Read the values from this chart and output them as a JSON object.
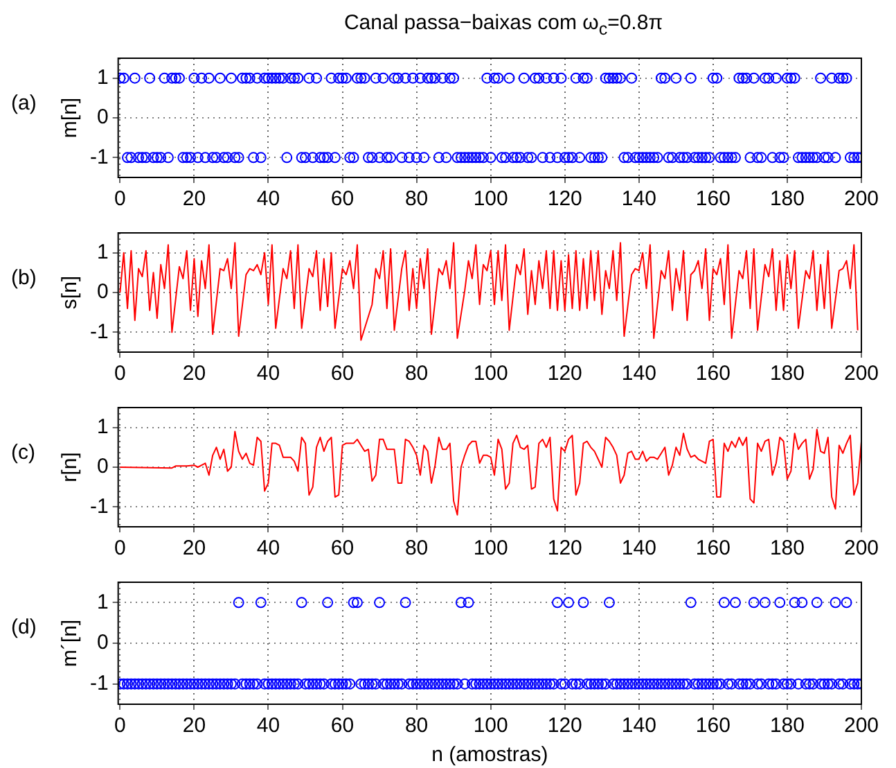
{
  "chart_data": [
    {
      "type": "scatter",
      "title": "Canal passa−baixas com ω$_{c}$=0.8π",
      "ylabel": "m[n]",
      "annotations": [
        "(a)"
      ],
      "color": "#0000ff",
      "marker": "circle",
      "grid": true,
      "xlim": [
        -0.5,
        200
      ],
      "ylim": [
        -1.5,
        1.5
      ],
      "xticks": [
        0,
        20,
        40,
        60,
        80,
        100,
        120,
        140,
        160,
        180,
        200
      ],
      "yticks": [
        -1,
        0,
        1
      ],
      "x": [
        0,
        1,
        2,
        3,
        4,
        5,
        6,
        7,
        8,
        9,
        10,
        11,
        12,
        13,
        14,
        15,
        16,
        17,
        18,
        19,
        20,
        21,
        22,
        23,
        24,
        25,
        26,
        27,
        28,
        29,
        30,
        31,
        32,
        33,
        34,
        35,
        36,
        37,
        38,
        39,
        40,
        41,
        42,
        43,
        44,
        45,
        46,
        47,
        48,
        49,
        50,
        51,
        52,
        53,
        54,
        55,
        56,
        57,
        58,
        59,
        60,
        61,
        62,
        63,
        64,
        65,
        66,
        67,
        68,
        69,
        70,
        71,
        72,
        73,
        74,
        75,
        76,
        77,
        78,
        79,
        80,
        81,
        82,
        83,
        84,
        85,
        86,
        87,
        88,
        89,
        90,
        91,
        92,
        93,
        94,
        95,
        96,
        97,
        98,
        99,
        100,
        101,
        102,
        103,
        104,
        105,
        106,
        107,
        108,
        109,
        110,
        111,
        112,
        113,
        114,
        115,
        116,
        117,
        118,
        119,
        120,
        121,
        122,
        123,
        124,
        125,
        126,
        127,
        128,
        129,
        130,
        131,
        132,
        133,
        134,
        135,
        136,
        137,
        138,
        139,
        140,
        141,
        142,
        143,
        144,
        145,
        146,
        147,
        148,
        149,
        150,
        151,
        152,
        153,
        154,
        155,
        156,
        157,
        158,
        159,
        160,
        161,
        162,
        163,
        164,
        165,
        166,
        167,
        168,
        169,
        170,
        171,
        172,
        173,
        174,
        175,
        176,
        177,
        178,
        179,
        180,
        181,
        182,
        183,
        184,
        185,
        186,
        187,
        188,
        189,
        190,
        191,
        192,
        193,
        194,
        195,
        196,
        197,
        198,
        199,
        200
      ],
      "values": [
        1,
        1,
        -1,
        -1,
        1,
        -1,
        -1,
        -1,
        1,
        -1,
        -1,
        -1,
        1,
        -1,
        1,
        1,
        1,
        -1,
        -1,
        -1,
        1,
        -1,
        1,
        -1,
        1,
        -1,
        -1,
        1,
        -1,
        -1,
        1,
        -1,
        -1,
        1,
        1,
        1,
        -1,
        1,
        -1,
        1,
        1,
        1,
        1,
        1,
        1,
        -1,
        1,
        1,
        1,
        -1,
        -1,
        1,
        -1,
        1,
        -1,
        -1,
        -1,
        1,
        -1,
        1,
        1,
        1,
        -1,
        -1,
        1,
        1,
        1,
        -1,
        -1,
        1,
        -1,
        1,
        -1,
        -1,
        1,
        1,
        -1,
        1,
        -1,
        1,
        -1,
        1,
        -1,
        1,
        1,
        1,
        -1,
        1,
        -1,
        1,
        1,
        -1,
        -1,
        -1,
        -1,
        -1,
        -1,
        -1,
        -1,
        1,
        -1,
        1,
        1,
        -1,
        -1,
        1,
        -1,
        -1,
        -1,
        1,
        -1,
        -1,
        1,
        1,
        -1,
        1,
        -1,
        1,
        -1,
        1,
        -1,
        -1,
        -1,
        1,
        -1,
        1,
        1,
        -1,
        -1,
        -1,
        -1,
        1,
        1,
        1,
        1,
        1,
        -1,
        -1,
        1,
        -1,
        -1,
        -1,
        -1,
        -1,
        -1,
        -1,
        1,
        1,
        -1,
        -1,
        1,
        -1,
        -1,
        -1,
        1,
        -1,
        -1,
        -1,
        -1,
        -1,
        1,
        1,
        -1,
        -1,
        -1,
        -1,
        -1,
        1,
        1,
        1,
        -1,
        1,
        -1,
        -1,
        1,
        1,
        -1,
        1,
        -1,
        -1,
        1,
        1,
        1,
        -1,
        -1,
        -1,
        -1,
        -1,
        -1,
        1,
        -1,
        -1,
        1,
        -1,
        1,
        1,
        1,
        -1,
        -1,
        -1,
        -1
      ]
    },
    {
      "type": "line",
      "ylabel": "s[n]",
      "annotations": [
        "(b)"
      ],
      "color": "#ff0000",
      "grid": true,
      "xlim": [
        -0.5,
        200
      ],
      "ylim": [
        -1.5,
        1.5
      ],
      "xticks": [
        0,
        20,
        40,
        60,
        80,
        100,
        120,
        140,
        160,
        180,
        200
      ],
      "yticks": [
        -1,
        0,
        1
      ],
      "x": [
        0,
        1,
        2,
        3,
        4,
        5,
        6,
        7,
        8,
        9,
        10,
        11,
        12,
        13,
        14,
        16,
        17,
        18,
        19,
        20,
        21,
        22,
        23,
        24,
        25,
        27,
        28,
        29,
        30,
        31,
        32,
        34,
        35,
        36,
        37,
        38,
        39,
        40,
        41,
        42,
        44,
        45,
        46,
        47,
        48,
        49,
        51,
        52,
        53,
        54,
        55,
        56,
        57,
        58,
        60,
        61,
        62,
        63,
        64,
        65,
        68,
        69,
        70,
        71,
        72,
        73,
        74,
        76,
        77,
        78,
        79,
        80,
        81,
        82,
        83,
        84,
        86,
        87,
        88,
        89,
        90,
        91,
        93,
        94,
        95,
        96,
        97,
        98,
        99,
        100,
        101,
        102,
        103,
        104,
        105,
        107,
        108,
        109,
        110,
        111,
        112,
        113,
        114,
        115,
        116,
        117,
        118,
        119,
        120,
        121,
        122,
        123,
        124,
        125,
        126,
        127,
        128,
        129,
        130,
        131,
        132,
        133,
        134,
        135,
        136,
        138,
        139,
        140,
        141,
        142,
        143,
        144,
        146,
        147,
        148,
        149,
        150,
        151,
        152,
        153,
        154,
        155,
        156,
        157,
        158,
        159,
        160,
        161,
        162,
        163,
        164,
        165,
        167,
        168,
        169,
        170,
        171,
        172,
        174,
        175,
        176,
        177,
        178,
        179,
        180,
        181,
        182,
        183,
        185,
        186,
        187,
        188,
        189,
        190,
        191,
        192,
        194,
        195,
        196,
        197,
        198,
        199
      ],
      "values": [
        0,
        1,
        -0.4,
        1.05,
        -0.7,
        0.6,
        0.4,
        1.05,
        -0.45,
        0.5,
        -0.65,
        0.7,
        0.1,
        1.2,
        -1,
        0.65,
        0.35,
        1.05,
        -0.45,
        0.85,
        -0.6,
        0.8,
        0.1,
        1.2,
        -1.05,
        0.6,
        0.55,
        0.85,
        0.1,
        1.25,
        -1.1,
        0.45,
        0.6,
        0.55,
        0.7,
        0.45,
        1,
        -0.3,
        1.2,
        -0.9,
        0.6,
        0.35,
        1.05,
        -0.4,
        1.2,
        -0.9,
        0.6,
        0.4,
        1.05,
        -0.45,
        0.85,
        -0.35,
        1,
        -0.9,
        0.6,
        0.45,
        0.8,
        0.1,
        1.2,
        -1.2,
        -0.3,
        0.6,
        0.35,
        1.05,
        -0.4,
        1.1,
        -0.95,
        0.6,
        1.05,
        -0.45,
        0.6,
        -0.4,
        0.85,
        0.1,
        1.1,
        -1.05,
        0.6,
        0.45,
        0.8,
        0.1,
        1.25,
        -1.15,
        0.05,
        0.8,
        0.35,
        1.2,
        -0.3,
        0.7,
        0.55,
        1.05,
        -0.3,
        1.05,
        -0.2,
        1.2,
        -0.95,
        0.7,
        0.45,
        1.1,
        -0.55,
        0.55,
        -0.3,
        0.8,
        0.1,
        1.05,
        -0.4,
        1.05,
        -0.45,
        0.8,
        -0.45,
        0.95,
        -0.4,
        1.05,
        -0.45,
        0.85,
        -0.4,
        1.05,
        -0.2,
        1.05,
        -0.55,
        0.55,
        0.1,
        1.05,
        -0.2,
        1.25,
        -1.1,
        0.45,
        0.6,
        0.55,
        1,
        0.1,
        1.2,
        -1.15,
        0.55,
        0.35,
        1.05,
        -0.45,
        0.6,
        0.05,
        1.05,
        -0.7,
        0.45,
        0.55,
        0.8,
        0.1,
        1.1,
        -0.7,
        0.6,
        0.45,
        0.85,
        -0.3,
        1.2,
        -1.15,
        0.55,
        0.35,
        1.05,
        -0.4,
        1.1,
        -0.95,
        0.7,
        0.4,
        1.1,
        -0.45,
        0.8,
        -0.45,
        0.95,
        0.1,
        1.05,
        -0.9,
        0.55,
        0.35,
        1.05,
        -0.45,
        0.7,
        -0.4,
        1.05,
        -0.9,
        0.55,
        0.6,
        0.8,
        0.1,
        1.2,
        -0.95
      ]
    },
    {
      "type": "line",
      "ylabel": "r[n]",
      "annotations": [
        "(c)"
      ],
      "color": "#ff0000",
      "grid": true,
      "xlim": [
        -0.5,
        200
      ],
      "ylim": [
        -1.5,
        1.5
      ],
      "xticks": [
        0,
        20,
        40,
        60,
        80,
        100,
        120,
        140,
        160,
        180,
        200
      ],
      "yticks": [
        -1,
        0,
        1
      ],
      "x": [
        0,
        14,
        15,
        18,
        20,
        21,
        22,
        23,
        24,
        25,
        26,
        27,
        28,
        29,
        30,
        31,
        32,
        33,
        34,
        35,
        36,
        37,
        38,
        39,
        40,
        41,
        42,
        43,
        44,
        45,
        46,
        47,
        48,
        49,
        50,
        51,
        52,
        53,
        54,
        55,
        56,
        57,
        58,
        59,
        60,
        61,
        62,
        63,
        64,
        65,
        66,
        67,
        68,
        69,
        70,
        71,
        72,
        73,
        74,
        75,
        76,
        77,
        78,
        79,
        80,
        81,
        82,
        83,
        84,
        85,
        86,
        87,
        88,
        89,
        90,
        91,
        92,
        93,
        94,
        95,
        96,
        97,
        98,
        99,
        100,
        101,
        102,
        103,
        104,
        105,
        106,
        107,
        108,
        109,
        110,
        111,
        112,
        113,
        114,
        115,
        116,
        117,
        118,
        119,
        120,
        121,
        122,
        123,
        124,
        125,
        126,
        127,
        128,
        129,
        130,
        131,
        132,
        133,
        134,
        135,
        136,
        137,
        138,
        139,
        140,
        141,
        142,
        143,
        144,
        145,
        146,
        147,
        148,
        149,
        150,
        151,
        152,
        153,
        154,
        155,
        156,
        157,
        158,
        159,
        160,
        161,
        162,
        163,
        164,
        165,
        166,
        167,
        168,
        169,
        170,
        171,
        172,
        173,
        174,
        175,
        176,
        177,
        178,
        179,
        180,
        181,
        182,
        183,
        184,
        185,
        186,
        187,
        188,
        189,
        190,
        191,
        192,
        193,
        194,
        195,
        196,
        197,
        198,
        199,
        200
      ],
      "values": [
        0,
        -0.02,
        0.03,
        0.03,
        0.05,
        0,
        0.05,
        0.1,
        -0.2,
        0.3,
        0.5,
        0.2,
        0.45,
        -0.1,
        0,
        0.9,
        0.4,
        0.2,
        0.35,
        0.1,
        0.05,
        0.75,
        0.65,
        -0.6,
        -0.4,
        0.6,
        0.6,
        0.55,
        0.25,
        0.25,
        0.25,
        0.15,
        -0.1,
        0.75,
        0.6,
        -0.7,
        -0.5,
        0.5,
        0.75,
        0.4,
        0.65,
        0.75,
        -0.75,
        -0.7,
        0.55,
        0.6,
        0.6,
        0.6,
        0.7,
        0.55,
        0.4,
        0.45,
        -0.35,
        -0.2,
        0.7,
        0.7,
        0.45,
        0.45,
        0.45,
        -0.4,
        -0.4,
        0.7,
        0.65,
        0.5,
        0.3,
        -0.2,
        0.55,
        0.4,
        -0.4,
        0.05,
        0.75,
        0.45,
        0.45,
        0.6,
        -0.85,
        -1.2,
        0,
        0.3,
        0.55,
        0.65,
        0.65,
        0.1,
        0.3,
        0.3,
        0.25,
        -0.2,
        0.7,
        0.45,
        -0.55,
        -0.4,
        0.6,
        0.8,
        0.5,
        0.45,
        0.55,
        -0.55,
        -0.5,
        0.6,
        0.7,
        0.5,
        0.75,
        -0.8,
        -1.1,
        0.5,
        0.4,
        0.7,
        0.8,
        -0.7,
        -0.4,
        0.6,
        0.65,
        0.5,
        0.4,
        0.2,
        0,
        0.75,
        0.65,
        0.5,
        0.3,
        -0.4,
        -0.2,
        0.35,
        0.4,
        0.2,
        0.2,
        0.4,
        0.15,
        0.25,
        0.25,
        0.2,
        0.35,
        0.5,
        -0.2,
        0.05,
        0.5,
        0.3,
        0.85,
        0.45,
        0.25,
        0.3,
        0.2,
        0.15,
        0.1,
        0.65,
        0.7,
        -0.75,
        -0.75,
        0.6,
        0.4,
        0.65,
        0.5,
        0.75,
        0.55,
        0.75,
        -0.8,
        -0.9,
        0.6,
        0.4,
        0.65,
        0.7,
        -0.2,
        0.1,
        0.75,
        0.65,
        -0.3,
        -0.1,
        0.85,
        0.45,
        0.6,
        0.7,
        -0.3,
        -0.05,
        0.95,
        0.4,
        0.35,
        0.75,
        -0.75,
        -1.05,
        0.55,
        0.35,
        0.6,
        0.8,
        -0.7,
        -0.4,
        0.65
      ]
    },
    {
      "type": "scatter",
      "ylabel": "m´[n]",
      "xlabel": "n (amostras)",
      "annotations": [
        "(d)"
      ],
      "color": "#0000ff",
      "marker": "circle",
      "grid": true,
      "xlim": [
        -0.5,
        200
      ],
      "ylim": [
        -1.5,
        1.5
      ],
      "xticks": [
        0,
        20,
        40,
        60,
        80,
        100,
        120,
        140,
        160,
        180,
        200
      ],
      "yticks": [
        -1,
        0,
        1
      ],
      "x": [
        0,
        1,
        2,
        3,
        4,
        5,
        6,
        7,
        8,
        9,
        10,
        11,
        12,
        13,
        14,
        15,
        16,
        17,
        18,
        19,
        20,
        21,
        22,
        23,
        24,
        25,
        26,
        27,
        28,
        29,
        30,
        31,
        32,
        33,
        34,
        35,
        36,
        37,
        38,
        39,
        40,
        41,
        42,
        43,
        44,
        45,
        46,
        47,
        48,
        49,
        50,
        51,
        52,
        53,
        54,
        55,
        56,
        57,
        58,
        59,
        60,
        61,
        62,
        63,
        64,
        65,
        66,
        67,
        68,
        69,
        70,
        71,
        72,
        73,
        74,
        75,
        76,
        77,
        78,
        79,
        80,
        81,
        82,
        83,
        84,
        85,
        86,
        87,
        88,
        89,
        90,
        91,
        92,
        93,
        94,
        95,
        96,
        97,
        98,
        99,
        100,
        101,
        102,
        103,
        104,
        105,
        106,
        107,
        108,
        109,
        110,
        111,
        112,
        113,
        114,
        115,
        116,
        117,
        118,
        119,
        120,
        121,
        122,
        123,
        124,
        125,
        126,
        127,
        128,
        129,
        130,
        131,
        132,
        133,
        134,
        135,
        136,
        137,
        138,
        139,
        140,
        141,
        142,
        143,
        144,
        145,
        146,
        147,
        148,
        149,
        150,
        151,
        152,
        153,
        154,
        155,
        156,
        157,
        158,
        159,
        160,
        161,
        162,
        163,
        164,
        165,
        166,
        167,
        168,
        169,
        170,
        171,
        172,
        173,
        174,
        175,
        176,
        177,
        178,
        179,
        180,
        181,
        182,
        183,
        184,
        185,
        186,
        187,
        188,
        189,
        190,
        191,
        192,
        193,
        194,
        195,
        196,
        197,
        198,
        199,
        200
      ],
      "values": [
        -1,
        -1,
        -1,
        -1,
        -1,
        -1,
        -1,
        -1,
        -1,
        -1,
        -1,
        -1,
        -1,
        -1,
        -1,
        -1,
        -1,
        -1,
        -1,
        -1,
        -1,
        -1,
        -1,
        -1,
        -1,
        -1,
        -1,
        -1,
        -1,
        -1,
        -1,
        -1,
        1,
        -1,
        -1,
        -1,
        -1,
        -1,
        1,
        -1,
        -1,
        -1,
        -1,
        -1,
        -1,
        -1,
        -1,
        -1,
        -1,
        1,
        -1,
        -1,
        -1,
        -1,
        -1,
        -1,
        1,
        -1,
        -1,
        -1,
        -1,
        -1,
        -1,
        1,
        1,
        -1,
        -1,
        -1,
        -1,
        -1,
        1,
        -1,
        -1,
        -1,
        -1,
        -1,
        -1,
        1,
        -1,
        -1,
        -1,
        -1,
        -1,
        -1,
        -1,
        -1,
        -1,
        -1,
        -1,
        -1,
        -1,
        -1,
        1,
        -1,
        1,
        -1,
        -1,
        -1,
        -1,
        -1,
        -1,
        -1,
        -1,
        -1,
        -1,
        -1,
        -1,
        -1,
        -1,
        -1,
        -1,
        -1,
        -1,
        -1,
        -1,
        -1,
        -1,
        -1,
        1,
        -1,
        -1,
        1,
        -1,
        -1,
        -1,
        1,
        -1,
        -1,
        -1,
        -1,
        -1,
        -1,
        1,
        -1,
        -1,
        -1,
        -1,
        -1,
        -1,
        -1,
        -1,
        -1,
        -1,
        -1,
        -1,
        -1,
        -1,
        -1,
        -1,
        -1,
        -1,
        -1,
        -1,
        -1,
        1,
        -1,
        -1,
        -1,
        -1,
        -1,
        -1,
        -1,
        -1,
        1,
        -1,
        -1,
        1,
        -1,
        -1,
        -1,
        -1,
        1,
        -1,
        -1,
        1,
        -1,
        -1,
        -1,
        1,
        -1,
        -1,
        -1,
        1,
        -1,
        1,
        -1,
        -1,
        -1,
        1,
        -1,
        -1,
        -1,
        -1,
        1,
        -1,
        -1,
        1,
        -1,
        -1,
        -1,
        -1
      ]
    }
  ]
}
